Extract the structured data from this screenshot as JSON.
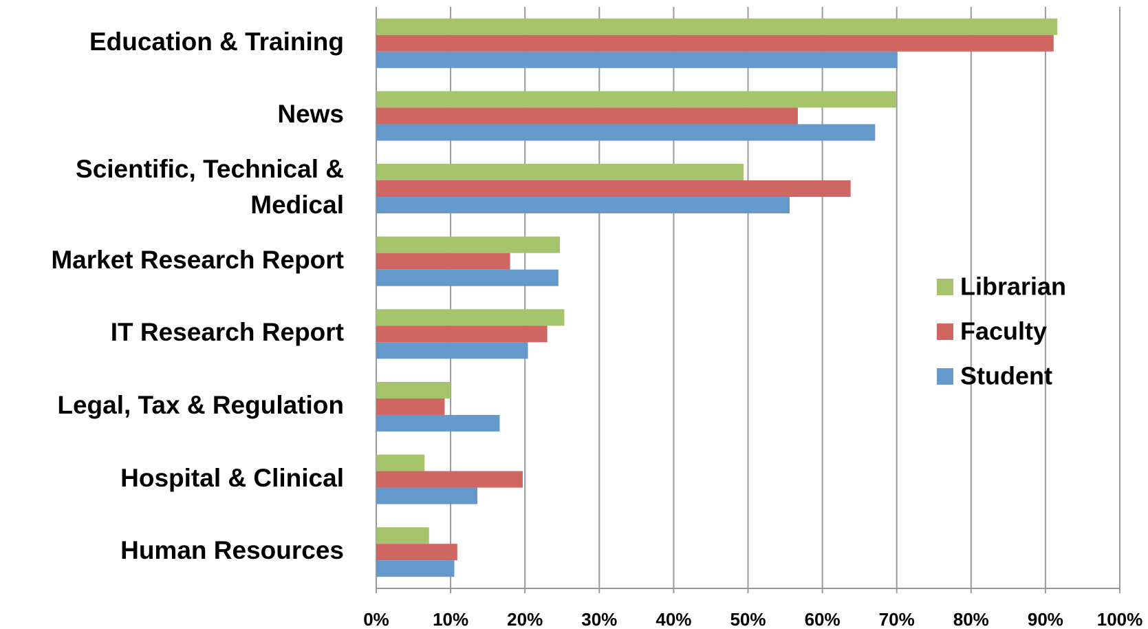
{
  "chart_data": {
    "type": "hbar",
    "categories": [
      "Education & Training",
      "News",
      "Scientific, Technical & Medical",
      "Market Research Report",
      "IT Research Report",
      "Legal, Tax & Regulation",
      "Hospital & Clinical",
      "Human Resources"
    ],
    "series": [
      {
        "name": "Librarian",
        "color": "#a6c46c",
        "values": [
          91.6,
          69.9,
          49.4,
          24.7,
          25.3,
          10.0,
          6.5,
          7.1
        ]
      },
      {
        "name": "Faculty",
        "color": "#cf6661",
        "values": [
          91.1,
          56.7,
          63.8,
          18.0,
          23.0,
          9.2,
          19.7,
          10.9
        ]
      },
      {
        "name": "Student",
        "color": "#6598cb",
        "values": [
          70.1,
          67.1,
          55.6,
          24.5,
          20.4,
          16.6,
          13.6,
          10.5
        ]
      }
    ],
    "xlim": [
      0,
      100
    ],
    "xticks": [
      {
        "value": 0,
        "label": "0%"
      },
      {
        "value": 10,
        "label": "10%"
      },
      {
        "value": 20,
        "label": "20%"
      },
      {
        "value": 30,
        "label": "30%"
      },
      {
        "value": 40,
        "label": "40%"
      },
      {
        "value": 50,
        "label": "50%"
      },
      {
        "value": 60,
        "label": "60%"
      },
      {
        "value": 70,
        "label": "70%"
      },
      {
        "value": 80,
        "label": "80%"
      },
      {
        "value": 90,
        "label": "90%"
      },
      {
        "value": 100,
        "label": "100%"
      }
    ],
    "grid": true,
    "legend": "right"
  }
}
